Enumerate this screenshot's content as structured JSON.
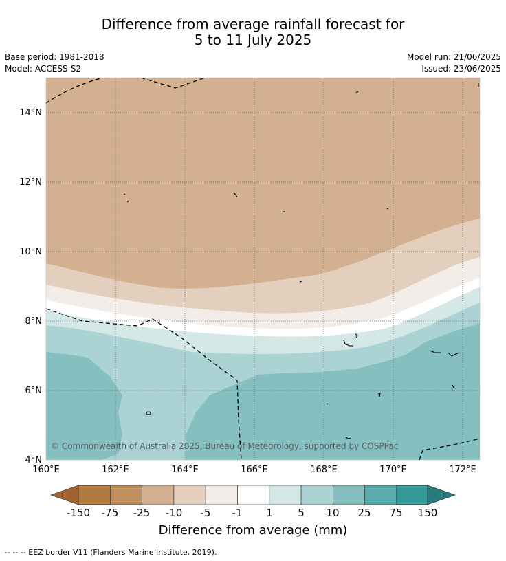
{
  "header": {
    "title_line1": "Difference from average rainfall forecast for",
    "title_line2": "5 to 11 July 2025",
    "base_period": "Base period: 1981-2018",
    "model": "Model: ACCESS-S2",
    "model_run": "Model run: 21/06/2025",
    "issued": "Issued: 23/06/2025"
  },
  "map": {
    "lat_labels": [
      "14°N",
      "12°N",
      "10°N",
      "8°N",
      "6°N",
      "4°N"
    ],
    "lon_labels": [
      "160°E",
      "162°E",
      "164°E",
      "166°E",
      "168°E",
      "170°E",
      "172°E"
    ],
    "copyright": "© Commonwealth of Australia 2025, Bureau of Meteorology, supported by COSPPac",
    "colors": {
      "brown_dark": "#a0632e",
      "brown": "#b07940",
      "tan": "#c0915f",
      "tan_light": "#d2b090",
      "beige": "#e2cfbd",
      "cream": "#f2ede8",
      "white": "#ffffff",
      "teal_pale": "#d4e8e8",
      "teal_light": "#abd3d3",
      "teal_mid": "#85bfbf",
      "teal": "#5aabab",
      "teal_dark": "#339999",
      "teal_darkest": "#2a7b7b"
    }
  },
  "legend": {
    "tick_labels": [
      "-150",
      "-75",
      "-25",
      "-10",
      "-5",
      "-1",
      "1",
      "5",
      "10",
      "25",
      "75",
      "150"
    ],
    "label": "Difference from average (mm)",
    "footnote": "--  --  -- EEZ border V11 (Flanders Marine Institute, 2019)."
  }
}
